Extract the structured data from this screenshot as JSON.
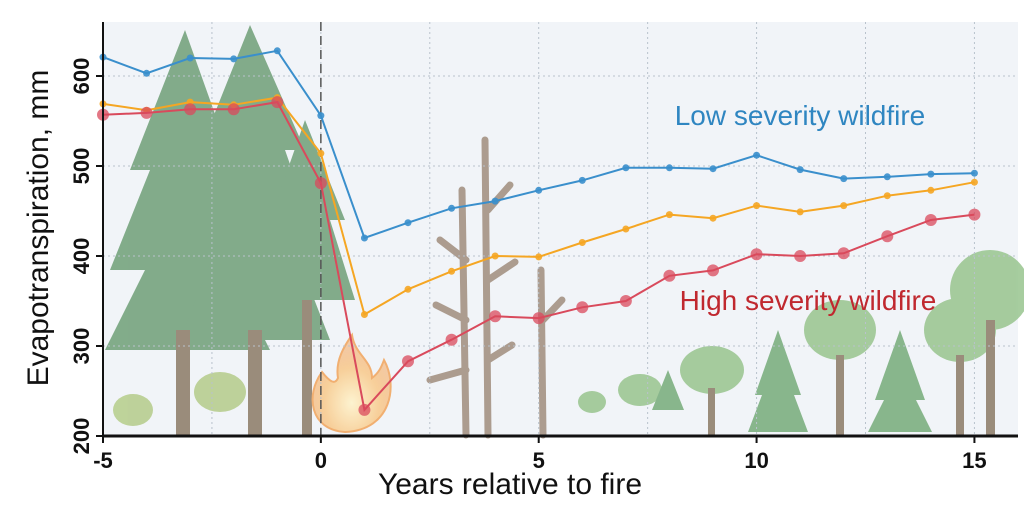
{
  "chart_data": {
    "type": "line",
    "xlabel": "Years relative to fire",
    "ylabel": "Evapotranspiration, mm",
    "xlim": [
      -5,
      16
    ],
    "ylim": [
      200,
      660
    ],
    "x_ticks": [
      "-5",
      "0",
      "5",
      "10",
      "15"
    ],
    "y_ticks": [
      "200",
      "300",
      "400",
      "500",
      "600"
    ],
    "grid": true,
    "fire_line_x": 0,
    "annotations": [
      {
        "text": "Low severity wildfire",
        "color": "#2f86c1"
      },
      {
        "text": "High severity wildfire",
        "color": "#c0282f"
      }
    ],
    "x": [
      -5,
      -4,
      -3,
      -2,
      -1,
      0,
      1,
      2,
      3,
      4,
      5,
      6,
      7,
      8,
      9,
      10,
      11,
      12,
      13,
      14,
      15
    ],
    "series": [
      {
        "color": "#3a8fcc",
        "values": [
          621,
          603,
          620,
          619,
          628,
          556,
          420,
          437,
          453,
          461,
          473,
          484,
          498,
          498,
          497,
          512,
          496,
          486,
          488,
          491,
          492
        ]
      },
      {
        "color": "#f5a623",
        "values": [
          569,
          562,
          571,
          568,
          576,
          514,
          335,
          363,
          383,
          400,
          399,
          415,
          430,
          446,
          442,
          456,
          449,
          456,
          467,
          473,
          482
        ]
      },
      {
        "color": "#d94a5c",
        "values": [
          557,
          559,
          563,
          563,
          571,
          481,
          229,
          283,
          307,
          333,
          331,
          343,
          350,
          378,
          384,
          402,
          400,
          403,
          422,
          440,
          446
        ]
      }
    ]
  }
}
